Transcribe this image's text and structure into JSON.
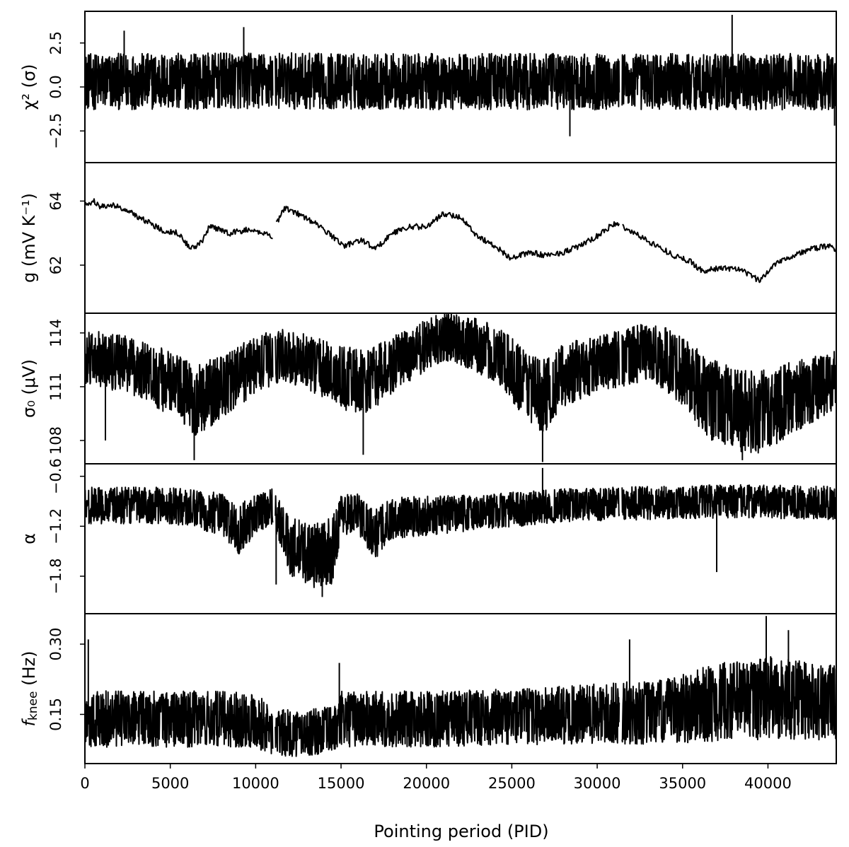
{
  "chart_data": {
    "type": "line",
    "xlabel": "Pointing period (PID)",
    "xlim": [
      0,
      44000
    ],
    "xticks": [
      0,
      5000,
      10000,
      15000,
      20000,
      25000,
      30000,
      35000,
      40000
    ],
    "xtick_labels": [
      "0",
      "5000",
      "10000",
      "15000",
      "20000",
      "25000",
      "30000",
      "35000",
      "40000"
    ],
    "gaps": [
      [
        11000,
        11150
      ],
      [
        31300,
        31450
      ]
    ],
    "panels": [
      {
        "ylabel": "χ² (σ)",
        "ylim": [
          -4.3,
          4.3
        ],
        "yticks": [
          -2.5,
          0.0,
          2.5
        ],
        "ytick_labels": [
          "−2.5",
          "0.0",
          "2.5"
        ],
        "series": {
          "kind": "noise",
          "x": [
            0,
            10000,
            20000,
            30000,
            44000
          ],
          "center": [
            0.3,
            0.35,
            0.3,
            0.3,
            0.3
          ],
          "halfwidth": [
            1.6,
            1.6,
            1.6,
            1.6,
            1.6
          ],
          "spikes": [
            [
              2300,
              3.2
            ],
            [
              9300,
              3.4
            ],
            [
              28400,
              -2.8
            ],
            [
              37900,
              4.1
            ],
            [
              43900,
              -2.2
            ]
          ]
        }
      },
      {
        "ylabel": "g (mV K⁻¹)",
        "ylim": [
          60.5,
          65.2
        ],
        "yticks": [
          62,
          64
        ],
        "ytick_labels": [
          "62",
          "64"
        ],
        "series": {
          "kind": "line",
          "x": [
            0,
            500,
            900,
            1500,
            2500,
            3500,
            4500,
            5500,
            6200,
            6800,
            7300,
            8500,
            9500,
            10500,
            11000,
            11200,
            11700,
            12500,
            13500,
            14500,
            15200,
            16200,
            17000,
            18000,
            19000,
            20000,
            21000,
            22000,
            23000,
            24000,
            25000,
            26000,
            27000,
            28000,
            29000,
            30000,
            31000,
            31500,
            32500,
            33500,
            34500,
            35500,
            36200,
            37000,
            38000,
            39000,
            39500,
            40500,
            41500,
            42500,
            43500,
            44000
          ],
          "y": [
            63.9,
            64.0,
            63.8,
            63.9,
            63.7,
            63.4,
            63.1,
            63.0,
            62.5,
            62.7,
            63.2,
            63.0,
            63.1,
            63.0,
            62.9,
            63.3,
            63.8,
            63.6,
            63.3,
            62.9,
            62.6,
            62.8,
            62.5,
            63.0,
            63.2,
            63.2,
            63.6,
            63.5,
            62.9,
            62.6,
            62.2,
            62.4,
            62.3,
            62.4,
            62.6,
            62.9,
            63.3,
            63.2,
            62.9,
            62.6,
            62.3,
            62.1,
            61.8,
            61.9,
            61.9,
            61.7,
            61.5,
            62.1,
            62.3,
            62.5,
            62.6,
            62.5
          ]
        }
      },
      {
        "ylabel": "σ₀ (μV)",
        "ylim": [
          106.7,
          115.1
        ],
        "yticks": [
          108,
          111,
          114
        ],
        "ytick_labels": [
          "108",
          "111",
          "114"
        ],
        "series": {
          "kind": "noise",
          "x": [
            0,
            2500,
            5000,
            6500,
            8000,
            9000,
            10000,
            11500,
            13000,
            15000,
            16500,
            18000,
            19500,
            21000,
            22500,
            24000,
            25500,
            26800,
            28000,
            30000,
            31500,
            33000,
            35000,
            36500,
            38000,
            39500,
            41000,
            43000,
            44000
          ],
          "center": [
            112.6,
            112.3,
            111.2,
            110.2,
            111.0,
            111.6,
            112.2,
            112.8,
            112.4,
            111.5,
            111.2,
            112.2,
            113.0,
            113.8,
            113.5,
            112.8,
            111.5,
            110.4,
            111.6,
            112.3,
            112.6,
            113.0,
            112.0,
            110.3,
            109.8,
            109.5,
            110.2,
            111.0,
            111.5
          ],
          "halfwidth": [
            1.6,
            1.6,
            1.8,
            2.0,
            1.8,
            1.7,
            1.6,
            1.5,
            1.5,
            1.8,
            1.8,
            1.6,
            1.5,
            1.4,
            1.5,
            1.6,
            1.9,
            2.1,
            1.8,
            1.6,
            1.6,
            1.6,
            2.0,
            2.3,
            2.3,
            2.4,
            2.1,
            1.8,
            1.7
          ],
          "spikes": [
            [
              1200,
              108.0
            ],
            [
              6400,
              106.9
            ],
            [
              16300,
              107.2
            ],
            [
              21300,
              115.0
            ],
            [
              26800,
              106.8
            ],
            [
              38500,
              106.9
            ]
          ]
        }
      },
      {
        "ylabel": "α",
        "ylim": [
          -2.25,
          -0.45
        ],
        "yticks": [
          -1.8,
          -1.2,
          -0.6
        ],
        "ytick_labels": [
          "−1.8",
          "−1.2",
          "−0.6"
        ],
        "series": {
          "kind": "noise",
          "x": [
            0,
            5000,
            8000,
            9000,
            10000,
            11000,
            12000,
            13500,
            14500,
            15000,
            16000,
            17000,
            18000,
            22000,
            28000,
            33000,
            38000,
            44000
          ],
          "center": [
            -0.95,
            -0.95,
            -1.05,
            -1.25,
            -1.05,
            -0.95,
            -1.45,
            -1.55,
            -1.5,
            -1.05,
            -1.05,
            -1.3,
            -1.1,
            -1.05,
            -0.95,
            -0.92,
            -0.9,
            -0.92
          ],
          "halfwidth": [
            0.22,
            0.22,
            0.25,
            0.3,
            0.25,
            0.22,
            0.35,
            0.4,
            0.4,
            0.25,
            0.25,
            0.3,
            0.25,
            0.22,
            0.2,
            0.2,
            0.2,
            0.2
          ],
          "spikes": [
            [
              11200,
              -1.9
            ],
            [
              13900,
              -2.05
            ],
            [
              26800,
              -0.5
            ],
            [
              37000,
              -1.75
            ]
          ]
        }
      },
      {
        "ylabel": "f_knee (Hz)",
        "ylim": [
          0.045,
          0.365
        ],
        "yticks": [
          0.15,
          0.3
        ],
        "ytick_labels": [
          "0.15",
          "0.30"
        ],
        "series": {
          "kind": "noise",
          "x": [
            0,
            5000,
            10000,
            11000,
            13000,
            14800,
            15000,
            20000,
            25000,
            30000,
            34000,
            36000,
            38000,
            40000,
            42000,
            44000
          ],
          "center": [
            0.14,
            0.14,
            0.14,
            0.11,
            0.11,
            0.12,
            0.14,
            0.14,
            0.145,
            0.15,
            0.155,
            0.17,
            0.18,
            0.185,
            0.18,
            0.175
          ],
          "halfwidth": [
            0.06,
            0.06,
            0.06,
            0.05,
            0.05,
            0.05,
            0.06,
            0.06,
            0.06,
            0.065,
            0.07,
            0.08,
            0.085,
            0.09,
            0.085,
            0.08
          ],
          "spikes": [
            [
              200,
              0.31
            ],
            [
              14900,
              0.26
            ],
            [
              31900,
              0.31
            ],
            [
              39900,
              0.36
            ],
            [
              41200,
              0.33
            ]
          ]
        }
      }
    ]
  }
}
